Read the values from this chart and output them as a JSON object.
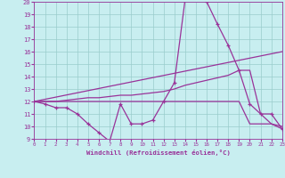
{
  "bg_color": "#c8eef0",
  "line_color": "#993399",
  "grid_color": "#99cccc",
  "xlabel": "Windchill (Refroidissement éolien,°C)",
  "xlim": [
    0,
    23
  ],
  "ylim": [
    9,
    20
  ],
  "xticks": [
    0,
    1,
    2,
    3,
    4,
    5,
    6,
    7,
    8,
    9,
    10,
    11,
    12,
    13,
    14,
    15,
    16,
    17,
    18,
    19,
    20,
    21,
    22,
    23
  ],
  "yticks": [
    9,
    10,
    11,
    12,
    13,
    14,
    15,
    16,
    17,
    18,
    19,
    20
  ],
  "curve1": {
    "x": [
      0,
      1,
      2,
      3,
      4,
      5,
      6,
      7,
      8,
      9,
      10,
      11,
      12,
      13,
      14,
      15,
      16,
      17,
      18,
      19,
      20,
      21,
      22,
      23
    ],
    "y": [
      12.0,
      11.8,
      11.5,
      11.5,
      11.0,
      10.2,
      9.5,
      8.8,
      11.8,
      10.2,
      10.2,
      10.5,
      12.0,
      13.5,
      20.2,
      20.3,
      20.0,
      18.2,
      16.5,
      14.5,
      11.8,
      11.0,
      11.0,
      9.8
    ]
  },
  "curve2": {
    "x": [
      0,
      23
    ],
    "y": [
      12.0,
      16.0
    ]
  },
  "curve3": {
    "x": [
      0,
      1,
      2,
      3,
      4,
      5,
      6,
      7,
      8,
      9,
      10,
      11,
      12,
      13,
      14,
      15,
      16,
      17,
      18,
      19,
      20,
      21,
      22,
      23
    ],
    "y": [
      12.0,
      12.0,
      12.0,
      12.1,
      12.2,
      12.3,
      12.3,
      12.4,
      12.5,
      12.5,
      12.6,
      12.7,
      12.8,
      13.0,
      13.3,
      13.5,
      13.7,
      13.9,
      14.1,
      14.5,
      14.5,
      11.0,
      10.2,
      10.0
    ]
  },
  "curve4": {
    "x": [
      0,
      1,
      2,
      3,
      4,
      5,
      6,
      7,
      8,
      9,
      10,
      11,
      12,
      13,
      14,
      15,
      16,
      17,
      18,
      19,
      20,
      21,
      22,
      23
    ],
    "y": [
      12.0,
      12.0,
      12.0,
      12.0,
      12.0,
      12.0,
      12.0,
      12.0,
      12.0,
      12.0,
      12.0,
      12.0,
      12.0,
      12.0,
      12.0,
      12.0,
      12.0,
      12.0,
      12.0,
      12.0,
      10.2,
      10.2,
      10.2,
      9.8
    ]
  }
}
